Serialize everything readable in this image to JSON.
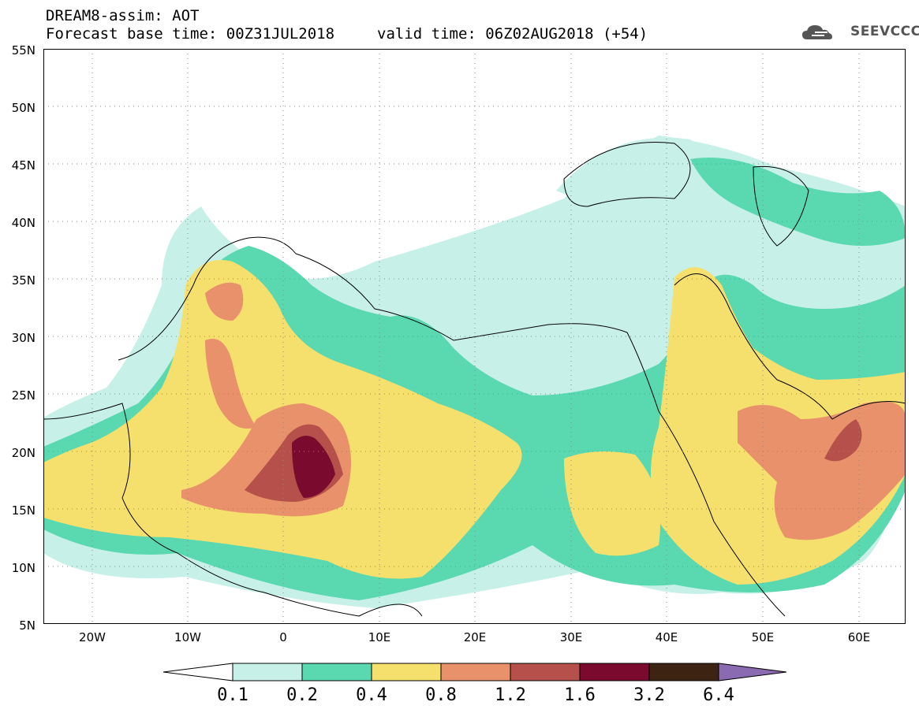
{
  "header": {
    "title_line1": "DREAM8-assim: AOT",
    "title_line2": "Forecast base time: 00Z31JUL2018",
    "valid_time": "valid time: 06Z02AUG2018 (+54)",
    "logo_text": "SEEVCCC"
  },
  "map": {
    "lat_labels": [
      "55N",
      "50N",
      "45N",
      "40N",
      "35N",
      "30N",
      "25N",
      "20N",
      "15N",
      "10N",
      "5N"
    ],
    "lon_labels": [
      "20W",
      "10W",
      "0",
      "10E",
      "20E",
      "30E",
      "40E",
      "50E",
      "60E"
    ],
    "lat_range": [
      5,
      55
    ],
    "lon_range": [
      -25,
      65
    ],
    "gridlines": "dotted",
    "field": "Aerosol Optical Thickness"
  },
  "colorbar": {
    "labels": [
      "0.1",
      "0.2",
      "0.4",
      "0.8",
      "1.2",
      "1.6",
      "3.2",
      "6.4"
    ],
    "colors": [
      "#ffffff",
      "#c7f0e8",
      "#5ad8b0",
      "#f5e06e",
      "#e8916a",
      "#b5504a",
      "#7a0a2e",
      "#3d2412",
      "#8a6ab0"
    ]
  }
}
